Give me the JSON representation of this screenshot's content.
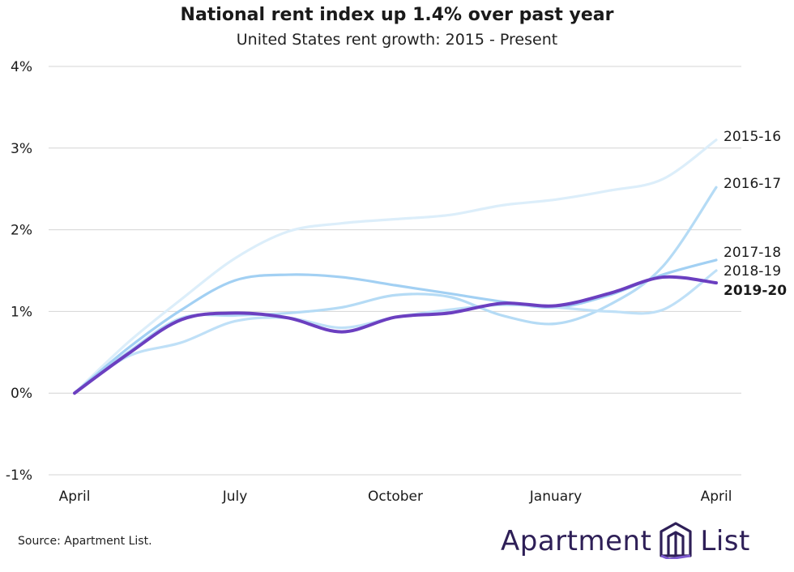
{
  "title": "National rent index up 1.4% over past year",
  "subtitle": "United States rent growth: 2015 - Present",
  "source": "Source: Apartment List.",
  "logo": {
    "left_word": "Apartment",
    "right_word": "List"
  },
  "colors": {
    "s2015": "#dceefa",
    "s2016": "#b5dbf5",
    "s2017": "#a2d0f3",
    "s2018": "#bfe0f7",
    "s2019": "#6b3fc0",
    "grid": "#d4d4d4",
    "logo": "#2e1f57"
  },
  "chart_data": {
    "type": "line",
    "title": "National rent index up 1.4% over past year",
    "subtitle": "United States rent growth: 2015 - Present",
    "xlabel": "",
    "ylabel": "",
    "x": [
      0,
      1,
      2,
      3,
      4,
      5,
      6,
      7,
      8,
      9,
      10,
      11,
      12
    ],
    "x_ticks": [
      {
        "x": 0,
        "label": "April"
      },
      {
        "x": 3,
        "label": "July"
      },
      {
        "x": 6,
        "label": "October"
      },
      {
        "x": 9,
        "label": "January"
      },
      {
        "x": 12,
        "label": "April"
      }
    ],
    "ylim": [
      -1,
      4
    ],
    "y_ticks": [
      -1,
      0,
      1,
      2,
      3,
      4
    ],
    "y_tick_labels": [
      "-1%",
      "0%",
      "1%",
      "2%",
      "3%",
      "4%"
    ],
    "grid": true,
    "series": [
      {
        "name": "2015-16",
        "color_key": "s2015",
        "bold": false,
        "values": [
          0,
          0.62,
          1.15,
          1.65,
          1.98,
          2.08,
          2.13,
          2.18,
          2.3,
          2.37,
          2.48,
          2.62,
          3.1
        ]
      },
      {
        "name": "2016-17",
        "color_key": "s2016",
        "bold": false,
        "values": [
          0,
          0.5,
          0.92,
          0.95,
          0.98,
          1.05,
          1.2,
          1.18,
          0.95,
          0.85,
          1.08,
          1.55,
          2.52
        ]
      },
      {
        "name": "2017-18",
        "color_key": "s2017",
        "bold": false,
        "values": [
          0,
          0.55,
          1.02,
          1.38,
          1.45,
          1.42,
          1.32,
          1.22,
          1.12,
          1.05,
          1.2,
          1.45,
          1.63
        ]
      },
      {
        "name": "2018-19",
        "color_key": "s2018",
        "bold": false,
        "values": [
          0,
          0.45,
          0.62,
          0.88,
          0.92,
          0.8,
          0.93,
          1.02,
          1.08,
          1.05,
          1.0,
          1.02,
          1.5
        ]
      },
      {
        "name": "2019-20",
        "color_key": "s2019",
        "bold": true,
        "values": [
          0,
          0.48,
          0.9,
          0.98,
          0.92,
          0.75,
          0.93,
          0.98,
          1.1,
          1.07,
          1.22,
          1.42,
          1.35
        ]
      }
    ]
  }
}
